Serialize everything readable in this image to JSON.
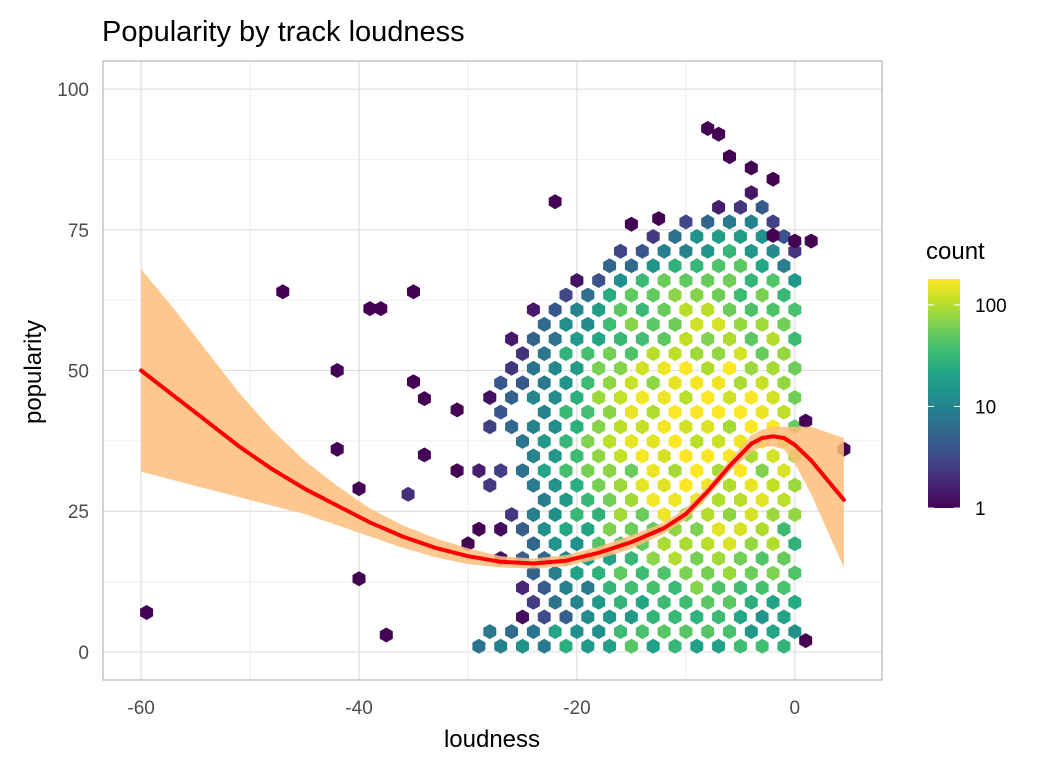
{
  "chart_data": {
    "type": "hexbin",
    "title": "Popularity by track loudness",
    "xlabel": "loudness",
    "ylabel": "popularity",
    "xlim": [
      -63.5,
      8
    ],
    "ylim": [
      -5,
      105
    ],
    "x_ticks": [
      "-60",
      "-40",
      "-20",
      "0"
    ],
    "y_ticks": [
      "0",
      "25",
      "50",
      "75",
      "100"
    ],
    "grid": true,
    "legend": {
      "title": "count",
      "position": "right",
      "scale": "log",
      "ticks": [
        "1",
        "10",
        "100"
      ],
      "range": [
        1,
        180
      ],
      "colors": [
        "#440154",
        "#3b528b",
        "#21908c",
        "#5dc863",
        "#fde725"
      ]
    },
    "isolated_hexes": [
      {
        "x": -59.5,
        "y": 7,
        "count": 1
      },
      {
        "x": -47,
        "y": 64,
        "count": 1
      },
      {
        "x": -42,
        "y": 50,
        "count": 1
      },
      {
        "x": -39,
        "y": 61,
        "count": 1
      },
      {
        "x": -38,
        "y": 61,
        "count": 1
      },
      {
        "x": -35,
        "y": 64,
        "count": 1
      },
      {
        "x": -35,
        "y": 48,
        "count": 1
      },
      {
        "x": -34,
        "y": 45,
        "count": 1
      },
      {
        "x": -42,
        "y": 36,
        "count": 1
      },
      {
        "x": -40,
        "y": 29,
        "count": 1
      },
      {
        "x": -40,
        "y": 13,
        "count": 1
      },
      {
        "x": -37.5,
        "y": 3,
        "count": 1
      },
      {
        "x": -35.5,
        "y": 28,
        "count": 2
      },
      {
        "x": -34,
        "y": 35,
        "count": 1
      },
      {
        "x": -31,
        "y": 43,
        "count": 1
      },
      {
        "x": -22,
        "y": 80,
        "count": 1
      },
      {
        "x": -15,
        "y": 76,
        "count": 1
      },
      {
        "x": -12.5,
        "y": 77,
        "count": 1
      },
      {
        "x": -8,
        "y": 93,
        "count": 1
      },
      {
        "x": -7,
        "y": 92,
        "count": 1
      },
      {
        "x": -6,
        "y": 88,
        "count": 1
      },
      {
        "x": -4,
        "y": 86,
        "count": 1
      },
      {
        "x": -2,
        "y": 84,
        "count": 1
      },
      {
        "x": -2,
        "y": 74,
        "count": 1
      },
      {
        "x": 0,
        "y": 73,
        "count": 1
      },
      {
        "x": 1.5,
        "y": 73,
        "count": 1
      },
      {
        "x": 1,
        "y": 41,
        "count": 1
      },
      {
        "x": 1,
        "y": 2,
        "count": 1
      },
      {
        "x": 4.5,
        "y": 36,
        "count": 1
      }
    ],
    "density_region": {
      "x_range": [
        -31,
        0
      ],
      "y_range": [
        1,
        86
      ],
      "peak": {
        "x": -8,
        "y": 38,
        "count": 180
      }
    },
    "smooth_line": {
      "name": "",
      "color": "#ff0000",
      "x": [
        -60,
        -57,
        -54,
        -51,
        -48,
        -45,
        -42,
        -39,
        -36,
        -33,
        -30,
        -27,
        -24,
        -21,
        -18,
        -15,
        -12,
        -10,
        -8,
        -6,
        -4,
        -3,
        -2,
        -1,
        0,
        1.5,
        3,
        4.5
      ],
      "y": [
        50,
        45.5,
        41,
        36.5,
        32.5,
        29,
        26,
        23,
        20.5,
        18.5,
        17,
        16,
        15.7,
        16.2,
        17.6,
        19.5,
        22,
        24.5,
        28.5,
        33,
        37,
        38,
        38.3,
        38,
        36.8,
        34,
        30.5,
        27
      ],
      "ci_color": "#fdbe7d",
      "ci_lower": [
        32,
        30.5,
        29,
        27.5,
        26,
        24.5,
        22.5,
        20.5,
        18.5,
        16.8,
        15.6,
        15,
        14.8,
        15.2,
        16.5,
        18.3,
        21,
        23.5,
        27.5,
        32,
        35.5,
        36.5,
        36.5,
        36,
        33.5,
        28,
        21.5,
        15
      ],
      "ci_upper": [
        68,
        61,
        53.5,
        46,
        39.5,
        34,
        29.5,
        25.5,
        22.5,
        20.2,
        18.4,
        17,
        16.6,
        17.2,
        18.7,
        20.7,
        23,
        25.5,
        29.5,
        34,
        38.5,
        39.5,
        40,
        40,
        40,
        40,
        39,
        38
      ]
    }
  }
}
